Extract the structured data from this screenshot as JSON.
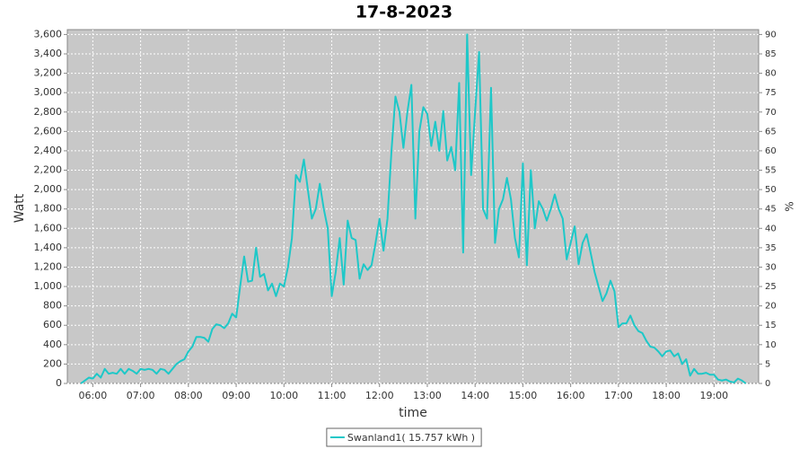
{
  "chart_data": {
    "type": "line",
    "title": "17-8-2023",
    "x_label": "time",
    "y_label": "Watt",
    "y2_label": "%",
    "x": [
      "05:45",
      "05:50",
      "05:55",
      "06:00",
      "06:05",
      "06:10",
      "06:15",
      "06:20",
      "06:25",
      "06:30",
      "06:35",
      "06:40",
      "06:45",
      "06:50",
      "06:55",
      "07:00",
      "07:05",
      "07:10",
      "07:15",
      "07:20",
      "07:25",
      "07:30",
      "07:35",
      "07:40",
      "07:45",
      "07:50",
      "07:55",
      "08:00",
      "08:05",
      "08:10",
      "08:15",
      "08:20",
      "08:25",
      "08:30",
      "08:35",
      "08:40",
      "08:45",
      "08:50",
      "08:55",
      "09:00",
      "09:05",
      "09:10",
      "09:15",
      "09:20",
      "09:25",
      "09:30",
      "09:35",
      "09:40",
      "09:45",
      "09:50",
      "09:55",
      "10:00",
      "10:05",
      "10:10",
      "10:15",
      "10:20",
      "10:25",
      "10:30",
      "10:35",
      "10:40",
      "10:45",
      "10:50",
      "10:55",
      "11:00",
      "11:05",
      "11:10",
      "11:15",
      "11:20",
      "11:25",
      "11:30",
      "11:35",
      "11:40",
      "11:45",
      "11:50",
      "11:55",
      "12:00",
      "12:05",
      "12:10",
      "12:15",
      "12:20",
      "12:25",
      "12:30",
      "12:35",
      "12:40",
      "12:45",
      "12:50",
      "12:55",
      "13:00",
      "13:05",
      "13:10",
      "13:15",
      "13:20",
      "13:25",
      "13:30",
      "13:35",
      "13:40",
      "13:45",
      "13:50",
      "13:55",
      "14:00",
      "14:05",
      "14:10",
      "14:15",
      "14:20",
      "14:25",
      "14:30",
      "14:35",
      "14:40",
      "14:45",
      "14:50",
      "14:55",
      "15:00",
      "15:05",
      "15:10",
      "15:15",
      "15:20",
      "15:25",
      "15:30",
      "15:35",
      "15:40",
      "15:45",
      "15:50",
      "15:55",
      "16:00",
      "16:05",
      "16:10",
      "16:15",
      "16:20",
      "16:25",
      "16:30",
      "16:35",
      "16:40",
      "16:45",
      "16:50",
      "16:55",
      "17:00",
      "17:05",
      "17:10",
      "17:15",
      "17:20",
      "17:25",
      "17:30",
      "17:35",
      "17:40",
      "17:45",
      "17:50",
      "17:55",
      "18:00",
      "18:05",
      "18:10",
      "18:15",
      "18:20",
      "18:25",
      "18:30",
      "18:35",
      "18:40",
      "18:45",
      "18:50",
      "18:55",
      "19:00",
      "19:05",
      "19:10",
      "19:15",
      "19:20",
      "19:25",
      "19:30",
      "19:35",
      "19:40"
    ],
    "series": [
      {
        "name": "Swanland1( 15.757 kWh )",
        "color": "#1ec8c8",
        "values": [
          0,
          30,
          60,
          50,
          100,
          60,
          150,
          100,
          110,
          100,
          150,
          100,
          150,
          130,
          100,
          150,
          140,
          150,
          140,
          100,
          150,
          140,
          100,
          150,
          200,
          230,
          250,
          330,
          380,
          480,
          480,
          470,
          430,
          560,
          610,
          600,
          570,
          620,
          720,
          680,
          1000,
          1310,
          1050,
          1060,
          1400,
          1100,
          1130,
          960,
          1030,
          900,
          1030,
          1000,
          1200,
          1500,
          2150,
          2080,
          2310,
          2000,
          1700,
          1800,
          2060,
          1800,
          1600,
          900,
          1150,
          1500,
          1020,
          1680,
          1500,
          1480,
          1080,
          1230,
          1170,
          1220,
          1450,
          1700,
          1370,
          1700,
          2400,
          2960,
          2800,
          2430,
          2800,
          3080,
          1700,
          2600,
          2850,
          2780,
          2450,
          2700,
          2400,
          2810,
          2300,
          2440,
          2200,
          3100,
          1350,
          3600,
          2150,
          2800,
          3420,
          1800,
          1700,
          3050,
          1450,
          1800,
          1900,
          2120,
          1900,
          1500,
          1300,
          2270,
          1220,
          2200,
          1600,
          1880,
          1800,
          1680,
          1800,
          1950,
          1800,
          1700,
          1280,
          1450,
          1620,
          1230,
          1450,
          1540,
          1350,
          1150,
          1000,
          850,
          930,
          1060,
          950,
          580,
          620,
          620,
          700,
          600,
          540,
          520,
          440,
          380,
          370,
          330,
          280,
          330,
          340,
          280,
          310,
          200,
          250,
          80,
          150,
          100,
          100,
          110,
          90,
          90,
          40,
          30,
          40,
          20,
          10,
          50,
          30,
          0
        ]
      }
    ],
    "xlim": [
      "05:28",
      "19:56"
    ],
    "xticks": [
      "06:00",
      "07:00",
      "08:00",
      "09:00",
      "10:00",
      "11:00",
      "12:00",
      "13:00",
      "14:00",
      "15:00",
      "16:00",
      "17:00",
      "18:00",
      "19:00"
    ],
    "ylim": [
      0,
      3650
    ],
    "yticks": [
      0,
      200,
      400,
      600,
      800,
      {
        "value": 1000,
        "label": "1,000"
      },
      {
        "value": 1200,
        "label": "1,200"
      },
      {
        "value": 1400,
        "label": "1,400"
      },
      {
        "value": 1600,
        "label": "1,600"
      },
      {
        "value": 1800,
        "label": "1,800"
      },
      {
        "value": 2000,
        "label": "2,000"
      },
      {
        "value": 2200,
        "label": "2,200"
      },
      {
        "value": 2400,
        "label": "2,400"
      },
      {
        "value": 2600,
        "label": "2,600"
      },
      {
        "value": 2800,
        "label": "2,800"
      },
      {
        "value": 3000,
        "label": "3,000"
      },
      {
        "value": 3200,
        "label": "3,200"
      },
      {
        "value": 3400,
        "label": "3,400"
      },
      {
        "value": 3600,
        "label": "3,600"
      }
    ],
    "y2lim": [
      0,
      91.25
    ],
    "y2ticks": [
      0,
      5,
      10,
      15,
      20,
      25,
      30,
      35,
      40,
      45,
      50,
      55,
      60,
      65,
      70,
      75,
      80,
      85,
      90
    ],
    "grid": true,
    "legend": "bottom"
  }
}
